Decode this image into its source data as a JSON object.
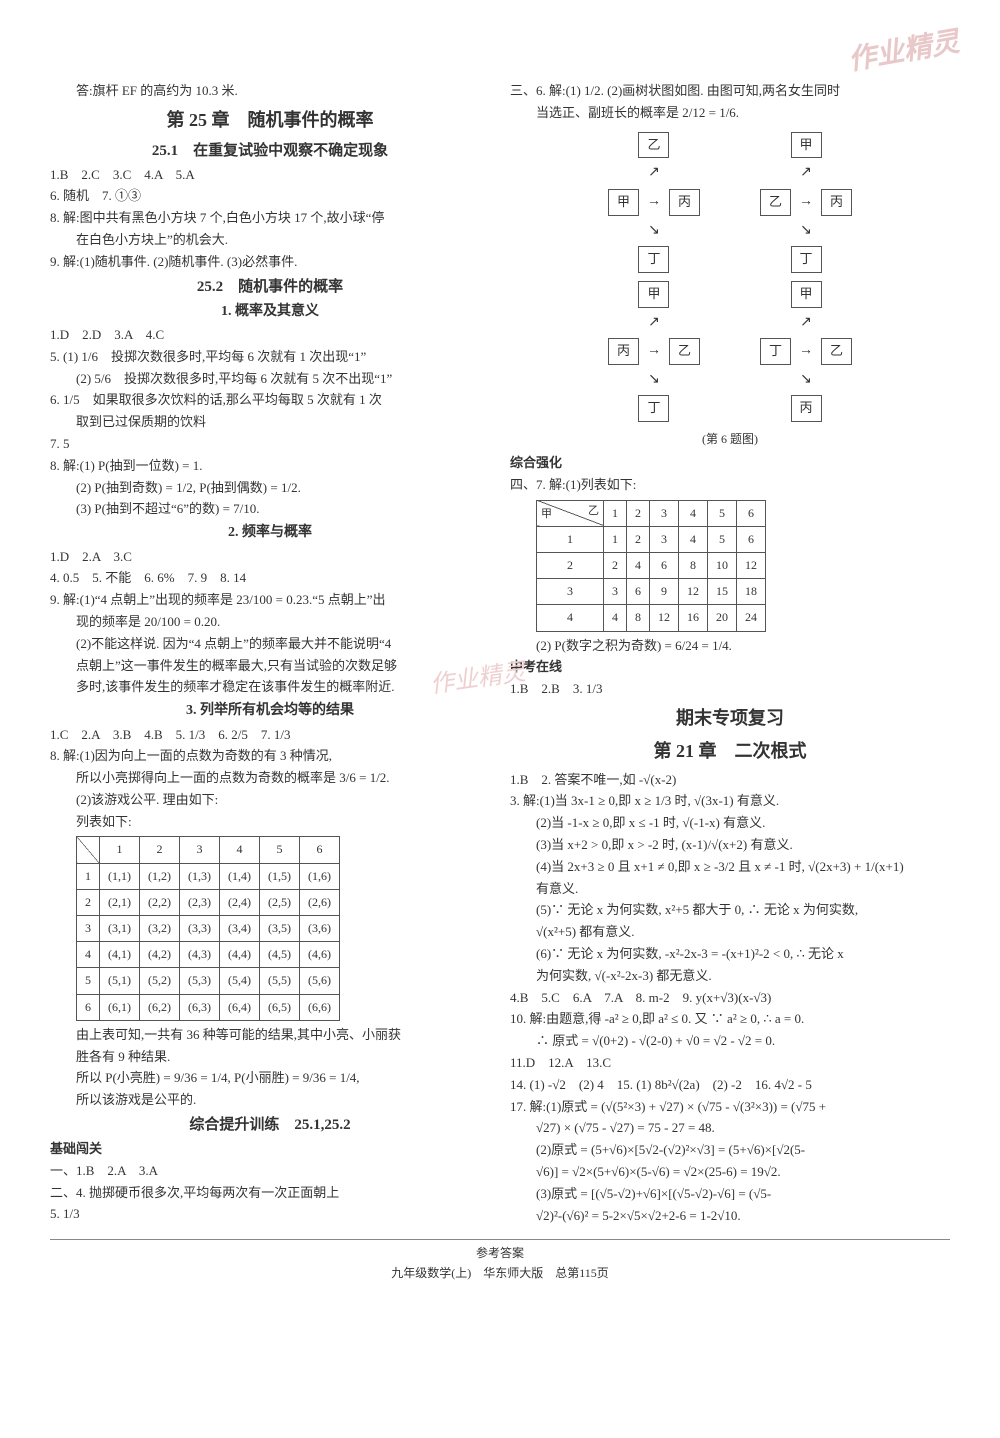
{
  "watermarks": {
    "tr": "作业精灵",
    "mid": "作业精灵",
    "left": "作业"
  },
  "left": {
    "l0": "答:旗杆 EF 的高约为 10.3 米.",
    "h_ch25": "第 25 章　随机事件的概率",
    "h_25_1": "25.1　在重复试验中观察不确定现象",
    "ans1": "1.B　2.C　3.C　4.A　5.A",
    "ans2": "6. 随机　7. ①③",
    "l8": "8. 解:图中共有黑色小方块 7 个,白色小方块 17 个,故小球“停",
    "l8b": "在白色小方块上”的机会大.",
    "l9": "9. 解:(1)随机事件. (2)随机事件. (3)必然事件.",
    "h_25_2": "25.2　随机事件的概率",
    "h_25_2_1": "1. 概率及其意义",
    "s2ans": "1.D　2.D　3.A　4.C",
    "s2_5a": "5. (1) 1/6　投掷次数很多时,平均每 6 次就有 1 次出现“1”",
    "s2_5b": "(2) 5/6　投掷次数很多时,平均每 6 次就有 5 次不出现“1”",
    "s2_6": "6. 1/5　如果取很多次饮料的话,那么平均每取 5 次就有 1 次",
    "s2_6b": "取到已过保质期的饮料",
    "s2_7": "7. 5",
    "s2_8a": "8. 解:(1) P(抽到一位数) = 1.",
    "s2_8b": "(2) P(抽到奇数) = 1/2, P(抽到偶数) = 1/2.",
    "s2_8c": "(3) P(抽到不超过“6”的数) = 7/10.",
    "h_25_2_2": "2. 频率与概率",
    "s3ans": "1.D　2.A　3.C",
    "s3ans2": "4. 0.5　5. 不能　6. 6%　7. 9　8. 14",
    "s3_9a": "9. 解:(1)“4 点朝上”出现的频率是 23/100 = 0.23.“5 点朝上”出",
    "s3_9b": "现的频率是 20/100 = 0.20.",
    "s3_9c": "(2)不能这样说. 因为“4 点朝上”的频率最大并不能说明“4",
    "s3_9d": "点朝上”这一事件发生的概率最大,只有当试验的次数足够",
    "s3_9e": "多时,该事件发生的频率才稳定在该事件发生的概率附近.",
    "h_25_2_3": "3. 列举所有机会均等的结果",
    "s4ans": "1.C　2.A　3.B　4.B　5. 1/3　6. 2/5　7. 1/3",
    "s4_8a": "8. 解:(1)因为向上一面的点数为奇数的有 3 种情况,",
    "s4_8b": "所以小亮掷得向上一面的点数为奇数的概率是 3/6 = 1/2.",
    "s4_8c": "(2)该游戏公平. 理由如下:",
    "s4_8d": "列表如下:",
    "table1": {
      "headers": [
        "",
        "1",
        "2",
        "3",
        "4",
        "5",
        "6"
      ],
      "rows": [
        [
          "1",
          "(1,1)",
          "(1,2)",
          "(1,3)",
          "(1,4)",
          "(1,5)",
          "(1,6)"
        ],
        [
          "2",
          "(2,1)",
          "(2,2)",
          "(2,3)",
          "(2,4)",
          "(2,5)",
          "(2,6)"
        ],
        [
          "3",
          "(3,1)",
          "(3,2)",
          "(3,3)",
          "(3,4)",
          "(3,5)",
          "(3,6)"
        ],
        [
          "4",
          "(4,1)",
          "(4,2)",
          "(4,3)",
          "(4,4)",
          "(4,5)",
          "(4,6)"
        ],
        [
          "5",
          "(5,1)",
          "(5,2)",
          "(5,3)",
          "(5,4)",
          "(5,5)",
          "(5,6)"
        ],
        [
          "6",
          "(6,1)",
          "(6,2)",
          "(6,3)",
          "(6,4)",
          "(6,5)",
          "(6,6)"
        ]
      ]
    },
    "s4_after1": "由上表可知,一共有 36 种等可能的结果,其中小亮、小丽获",
    "s4_after2": "胜各有 9 种结果.",
    "s4_after3": "所以 P(小亮胜) = 9/36 = 1/4, P(小丽胜) = 9/36 = 1/4,",
    "s4_after4": "所以该游戏是公平的.",
    "h_comp": "综合提升训练　25.1,25.2",
    "base_label": "基础闯关",
    "base_1": "一、1.B　2.A　3.A",
    "base_2": "二、4. 抛掷硬币很多次,平均每两次有一次正面朝上",
    "base_3": "5. 1/3"
  },
  "right": {
    "r6a": "三、6. 解:(1) 1/2. (2)画树状图如图. 由图可知,两名女生同时",
    "r6b": "当选正、副班长的概率是 2/12 = 1/6.",
    "tree_caption": "(第 6 题图)",
    "tree": {
      "nodes": [
        "甲",
        "乙",
        "丙",
        "丁"
      ]
    },
    "comp_label": "综合强化",
    "r7a": "四、7. 解:(1)列表如下:",
    "table2": {
      "corner_top": "乙",
      "corner_bottom": "甲",
      "headers": [
        "1",
        "2",
        "3",
        "4",
        "5",
        "6"
      ],
      "rows": [
        [
          "1",
          "1",
          "2",
          "3",
          "4",
          "5",
          "6"
        ],
        [
          "2",
          "2",
          "4",
          "6",
          "8",
          "10",
          "12"
        ],
        [
          "3",
          "3",
          "6",
          "9",
          "12",
          "15",
          "18"
        ],
        [
          "4",
          "4",
          "8",
          "12",
          "16",
          "20",
          "24"
        ]
      ]
    },
    "r7b": "(2) P(数字之积为奇数) = 6/24 = 1/4.",
    "zk_label": "中考在线",
    "zk_ans": "1.B　2.B　3. 1/3",
    "h_final": "期末专项复习",
    "h_ch21": "第 21 章　二次根式",
    "c21_1": "1.B　2. 答案不唯一,如 -√(x-2)",
    "c21_3a": "3. 解:(1)当 3x-1 ≥ 0,即 x ≥ 1/3 时, √(3x-1) 有意义.",
    "c21_3b": "(2)当 -1-x ≥ 0,即 x ≤ -1 时, √(-1-x) 有意义.",
    "c21_3c": "(3)当 x+2 > 0,即 x > -2 时, (x-1)/√(x+2) 有意义.",
    "c21_3d": "(4)当 2x+3 ≥ 0 且 x+1 ≠ 0,即 x ≥ -3/2 且 x ≠ -1 时, √(2x+3) + 1/(x+1)",
    "c21_3e": "有意义.",
    "c21_3f": "(5)∵ 无论 x 为何实数, x²+5 都大于 0, ∴ 无论 x 为何实数,",
    "c21_3g": "√(x²+5) 都有意义.",
    "c21_3h": "(6)∵ 无论 x 为何实数, -x²-2x-3 = -(x+1)²-2 < 0, ∴ 无论 x",
    "c21_3i": "为何实数, √(-x²-2x-3) 都无意义.",
    "c21_4": "4.B　5.C　6.A　7.A　8. m-2　9. y(x+√3)(x-√3)",
    "c21_10a": "10. 解:由题意,得 -a² ≥ 0,即 a² ≤ 0. 又 ∵ a² ≥ 0, ∴ a = 0.",
    "c21_10b": "∴ 原式 = √(0+2) - √(2-0) + √0 = √2 - √2 = 0.",
    "c21_11": "11.D　12.A　13.C",
    "c21_14": "14. (1) -√2　(2) 4　15. (1) 8b²√(2a)　(2) -2　16. 4√2 - 5",
    "c21_17a": "17. 解:(1)原式 = (√(5²×3) + √27) × (√75 - √(3²×3)) = (√75 +",
    "c21_17b": "√27) × (√75 - √27) = 75 - 27 = 48.",
    "c21_17c": "(2)原式 = (5+√6)×[5√2-(√2)²×√3] = (5+√6)×[√2(5-",
    "c21_17d": "√6)] = √2×(5+√6)×(5-√6) = √2×(25-6) = 19√2.",
    "c21_17e": "(3)原式 = [(√5-√2)+√6]×[(√5-√2)-√6] = (√5-",
    "c21_17f": "√2)²-(√6)² = 5-2×√5×√2+2-6 = 1-2√10."
  },
  "footer": {
    "top": "参考答案",
    "bottom": "九年级数学(上)　华东师大版　总第115页"
  }
}
